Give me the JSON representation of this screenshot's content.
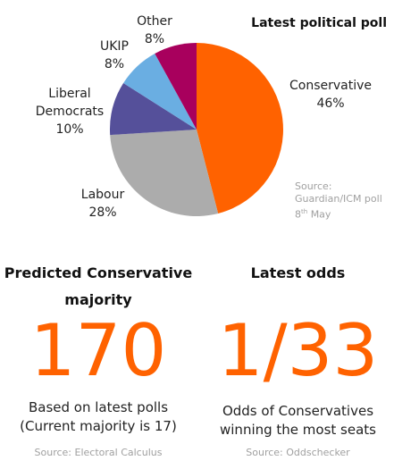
{
  "chart_data": {
    "type": "pie",
    "title": "Latest political poll",
    "slices": [
      {
        "label": "Conservative",
        "value": 46,
        "pct_text": "46%",
        "color": "#ff6200"
      },
      {
        "label": "Labour",
        "value": 28,
        "pct_text": "28%",
        "color": "#acacac"
      },
      {
        "label": "Liberal Democrats",
        "label_lines": [
          "Liberal",
          "Democrats"
        ],
        "value": 10,
        "pct_text": "10%",
        "color": "#55509a"
      },
      {
        "label": "UKIP",
        "value": 8,
        "pct_text": "8%",
        "color": "#6aaee2"
      },
      {
        "label": "Other",
        "value": 8,
        "pct_text": "8%",
        "color": "#a8005d"
      }
    ],
    "source_lines": [
      "Source:",
      "Guardian/ICM poll"
    ],
    "source_date": {
      "day": "8",
      "suffix": "th",
      "month": "May"
    }
  },
  "majority_panel": {
    "heading_lines": [
      "Predicted Conservative",
      "majority"
    ],
    "value": "170",
    "desc_lines": [
      "Based on latest polls",
      "(Current majority is 17)"
    ],
    "source": "Source: Electoral Calculus"
  },
  "odds_panel": {
    "heading": "Latest odds",
    "value": "1/33",
    "desc_lines": [
      "Odds of Conservatives",
      "winning the most seats"
    ],
    "source": "Source: Oddschecker"
  },
  "colors": {
    "accent": "#ff6200",
    "source_text": "#a0a0a0"
  }
}
